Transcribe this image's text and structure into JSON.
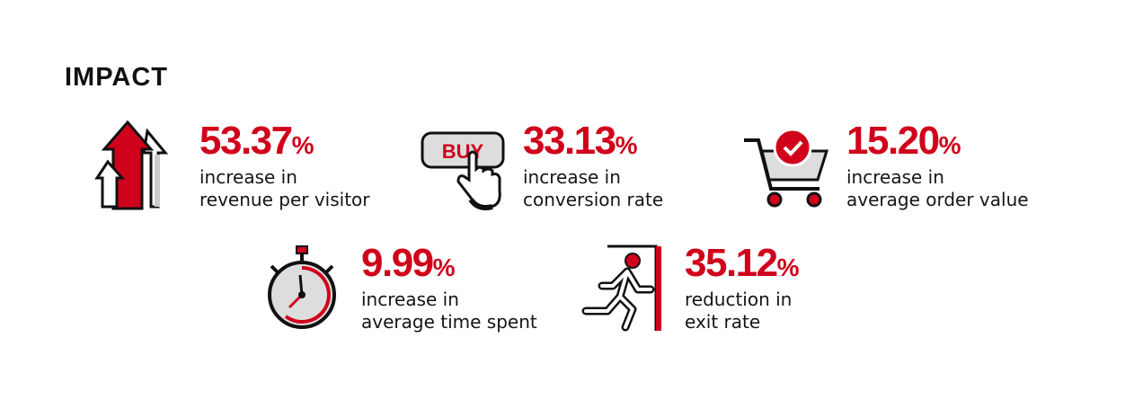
{
  "header": {
    "title": "IMPACT"
  },
  "buy_icon": {
    "label": "BUY"
  },
  "stats": [
    {
      "value": "53.37",
      "unit": "%",
      "lines": [
        "increase in",
        "revenue per visitor"
      ]
    },
    {
      "value": "33.13",
      "unit": "%",
      "lines": [
        "increase in",
        "conversion rate"
      ]
    },
    {
      "value": "15.20",
      "unit": "%",
      "lines": [
        "increase in",
        "average order value"
      ]
    },
    {
      "value": "9.99",
      "unit": "%",
      "lines": [
        "increase in",
        "average time spent"
      ]
    },
    {
      "value": "35.12",
      "unit": "%",
      "lines": [
        "reduction in",
        "exit rate"
      ]
    }
  ]
}
